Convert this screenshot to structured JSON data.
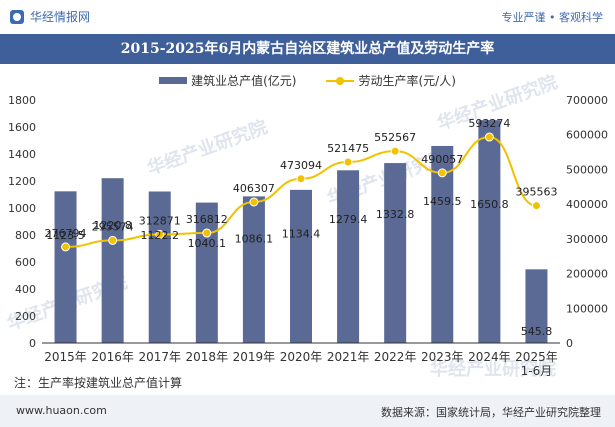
{
  "header": {
    "brand": "华经情报网",
    "slogan": "专业严谨 • 客观科学"
  },
  "title": "2015-2025年6月内蒙古自治区建筑业总产值及劳动生产率",
  "legend": {
    "bar": "建筑业总产值(亿元)",
    "line": "劳动生产率(元/人)"
  },
  "note": "注：生产率按建筑业总产值计算",
  "footer": {
    "url": "www.huaon.com",
    "source": "数据来源：国家统计局，华经产业研究院整理"
  },
  "watermark": "华经产业研究院",
  "colors": {
    "bar": "#5a6a94",
    "line": "#f2c100",
    "title_bg": "#3f5f9a"
  },
  "chart_data": {
    "type": "bar+line",
    "categories": [
      "2015年",
      "2016年",
      "2017年",
      "2018年",
      "2019年",
      "2020年",
      "2021年",
      "2022年",
      "2023年",
      "2024年",
      "2025年\n1-6月"
    ],
    "series": [
      {
        "name": "建筑业总产值(亿元)",
        "type": "bar",
        "axis": "left",
        "values": [
          1123.5,
          1220.8,
          1122.2,
          1040.1,
          1086.1,
          1134.4,
          1279.4,
          1332.8,
          1459.5,
          1650.8,
          545.8
        ],
        "labels": [
          "1123.5",
          "1220.8",
          "1122.2",
          "1040.1",
          "1086.1",
          "1134.4",
          "1279.4",
          "1332.8",
          "1459.5",
          "1650.8",
          "545.8"
        ]
      },
      {
        "name": "劳动生产率(元/人)",
        "type": "line",
        "axis": "right",
        "values": [
          276794,
          295574,
          312871,
          316812,
          406307,
          473094,
          521475,
          552567,
          490057,
          593274,
          395563
        ],
        "labels": [
          "276794",
          "295574",
          "312871",
          "316812",
          "406307",
          "473094",
          "521475",
          "552567",
          "490057",
          "593274",
          "395563"
        ]
      }
    ],
    "y_left": {
      "min": 0,
      "max": 1800,
      "ticks": [
        "0",
        "200",
        "400",
        "600",
        "800",
        "1000",
        "1200",
        "1400",
        "1600",
        "1800"
      ]
    },
    "y_right": {
      "min": 0,
      "max": 700000,
      "ticks": [
        "0",
        "100000",
        "200000",
        "300000",
        "400000",
        "500000",
        "600000",
        "700000"
      ]
    },
    "grid": false,
    "legend_position": "top-center"
  }
}
